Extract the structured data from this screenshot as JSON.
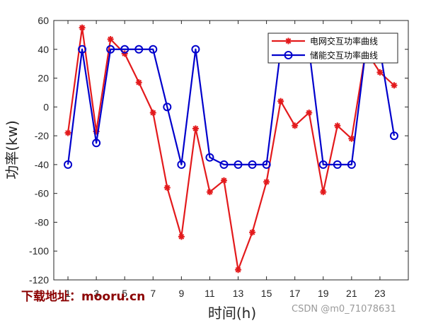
{
  "chart_data": {
    "type": "line",
    "xlabel": "时间(h)",
    "ylabel": "功率(kw)",
    "xlim": [
      0,
      25
    ],
    "ylim": [
      -120,
      60
    ],
    "xticks": [
      1,
      3,
      5,
      7,
      9,
      11,
      13,
      15,
      17,
      19,
      21,
      23
    ],
    "yticks": [
      -120,
      -100,
      -80,
      -60,
      -40,
      -20,
      0,
      20,
      40,
      60
    ],
    "grid": false,
    "legend_position": "top-right",
    "x": [
      1,
      2,
      3,
      4,
      5,
      6,
      7,
      8,
      9,
      10,
      11,
      12,
      13,
      14,
      15,
      16,
      17,
      18,
      19,
      20,
      21,
      22,
      23,
      24
    ],
    "series": [
      {
        "name": "电网交互功率曲线",
        "color": "#e31a1c",
        "marker": "asterisk",
        "values": [
          -18,
          55,
          -17,
          47,
          37,
          17,
          -4,
          -56,
          -90,
          -15,
          -59,
          -51,
          -113,
          -87,
          -52,
          4,
          -13,
          -4,
          -59,
          -13,
          -22,
          39,
          24,
          15
        ]
      },
      {
        "name": "储能交互功率曲线",
        "color": "#0000cc",
        "marker": "circle",
        "values": [
          -40,
          40,
          -25,
          40,
          40,
          40,
          40,
          0,
          -40,
          40,
          -35,
          -40,
          -40,
          -40,
          -40,
          40,
          40,
          40,
          -40,
          -40,
          -40,
          40,
          40,
          -20
        ]
      }
    ]
  },
  "watermarks": {
    "left": "下载地址：mooru.cn",
    "right": "CSDN @m0_71078631"
  }
}
